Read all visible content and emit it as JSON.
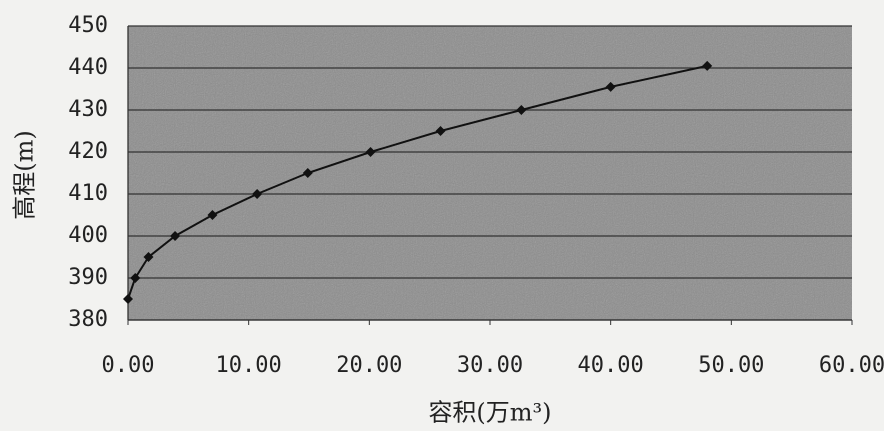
{
  "chart_data": {
    "type": "line",
    "x_label": "容积(万m³)",
    "y_label": "高程(m)",
    "x": [
      0,
      0.6,
      1.7,
      3.9,
      7.0,
      10.7,
      14.9,
      20.1,
      25.9,
      32.6,
      40.0,
      48.0
    ],
    "series": [
      {
        "color": "#111111",
        "values": [
          385,
          390,
          395,
          400,
          405,
          410,
          415,
          420,
          425,
          430,
          435.5,
          440.5
        ]
      }
    ],
    "xlim": [
      0,
      60
    ],
    "ylim": [
      380,
      450
    ],
    "xticks": [
      {
        "value": 0,
        "label": "0.00"
      },
      {
        "value": 10,
        "label": "10.00"
      },
      {
        "value": 20,
        "label": "20.00"
      },
      {
        "value": 30,
        "label": "30.00"
      },
      {
        "value": 40,
        "label": "40.00"
      },
      {
        "value": 50,
        "label": "50.00"
      },
      {
        "value": 60,
        "label": "60.00"
      }
    ],
    "yticks": [
      380,
      390,
      400,
      410,
      420,
      430,
      440,
      450
    ],
    "grid": true
  }
}
